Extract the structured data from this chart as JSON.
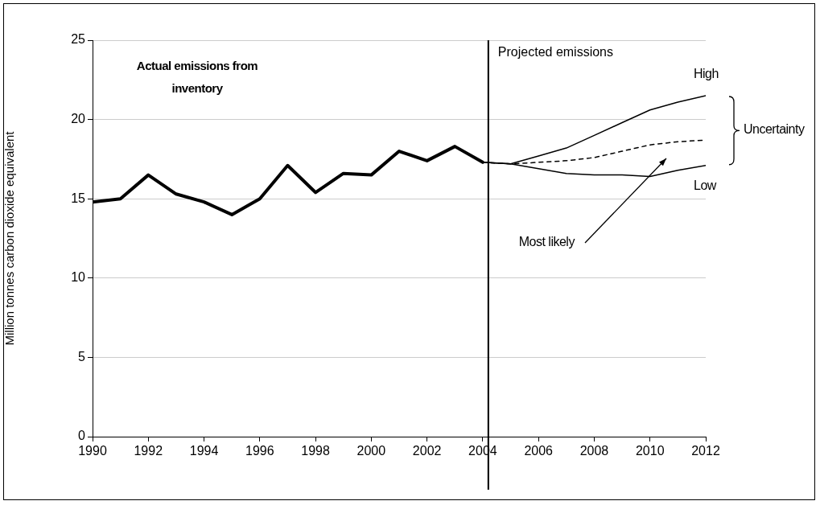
{
  "chart_data": {
    "type": "line",
    "ylabel": "Million tonnes carbon dioxide equivalent",
    "xlim": [
      1990,
      2012
    ],
    "xticks": [
      1990,
      1992,
      1994,
      1996,
      1998,
      2000,
      2002,
      2004,
      2006,
      2008,
      2010,
      2012
    ],
    "ylim": [
      0,
      25
    ],
    "yticks": [
      0,
      5,
      10,
      15,
      20,
      25
    ],
    "grid": "y",
    "legend": false,
    "marker": "none",
    "series": [
      {
        "color": "#000000",
        "x": [
          1990,
          1991,
          1992,
          1993,
          1994,
          1995,
          1996,
          1997,
          1998,
          1999,
          2000,
          2001,
          2002,
          2003,
          2004
        ],
        "values": [
          14.8,
          15.0,
          16.5,
          15.3,
          14.8,
          14.0,
          15.0,
          17.1,
          15.4,
          16.6,
          16.5,
          18.0,
          17.4,
          18.3,
          17.3
        ]
      },
      {
        "name": "High",
        "color": "#000000",
        "x": [
          2004,
          2005,
          2006,
          2007,
          2008,
          2009,
          2010,
          2011,
          2012
        ],
        "values": [
          17.3,
          17.2,
          17.7,
          18.2,
          19.0,
          19.8,
          20.6,
          21.1,
          21.5
        ]
      },
      {
        "name": "Most likely",
        "color": "#000000",
        "line_style": "dashed",
        "x": [
          2004,
          2005,
          2006,
          2007,
          2008,
          2009,
          2010,
          2011,
          2012
        ],
        "values": [
          17.3,
          17.2,
          17.3,
          17.4,
          17.6,
          18.0,
          18.4,
          18.6,
          18.7
        ]
      },
      {
        "name": "Low",
        "color": "#000000",
        "x": [
          2004,
          2005,
          2006,
          2007,
          2008,
          2009,
          2010,
          2011,
          2012
        ],
        "values": [
          17.3,
          17.2,
          16.9,
          16.6,
          16.5,
          16.5,
          16.4,
          16.8,
          17.1
        ]
      }
    ],
    "ref_lines": [
      {
        "axis": "x",
        "value": 2004.2,
        "label": "Projected emissions",
        "color": "#000000"
      }
    ],
    "annotations": [
      "Actual emissions from inventory",
      "Uncertainty"
    ]
  }
}
